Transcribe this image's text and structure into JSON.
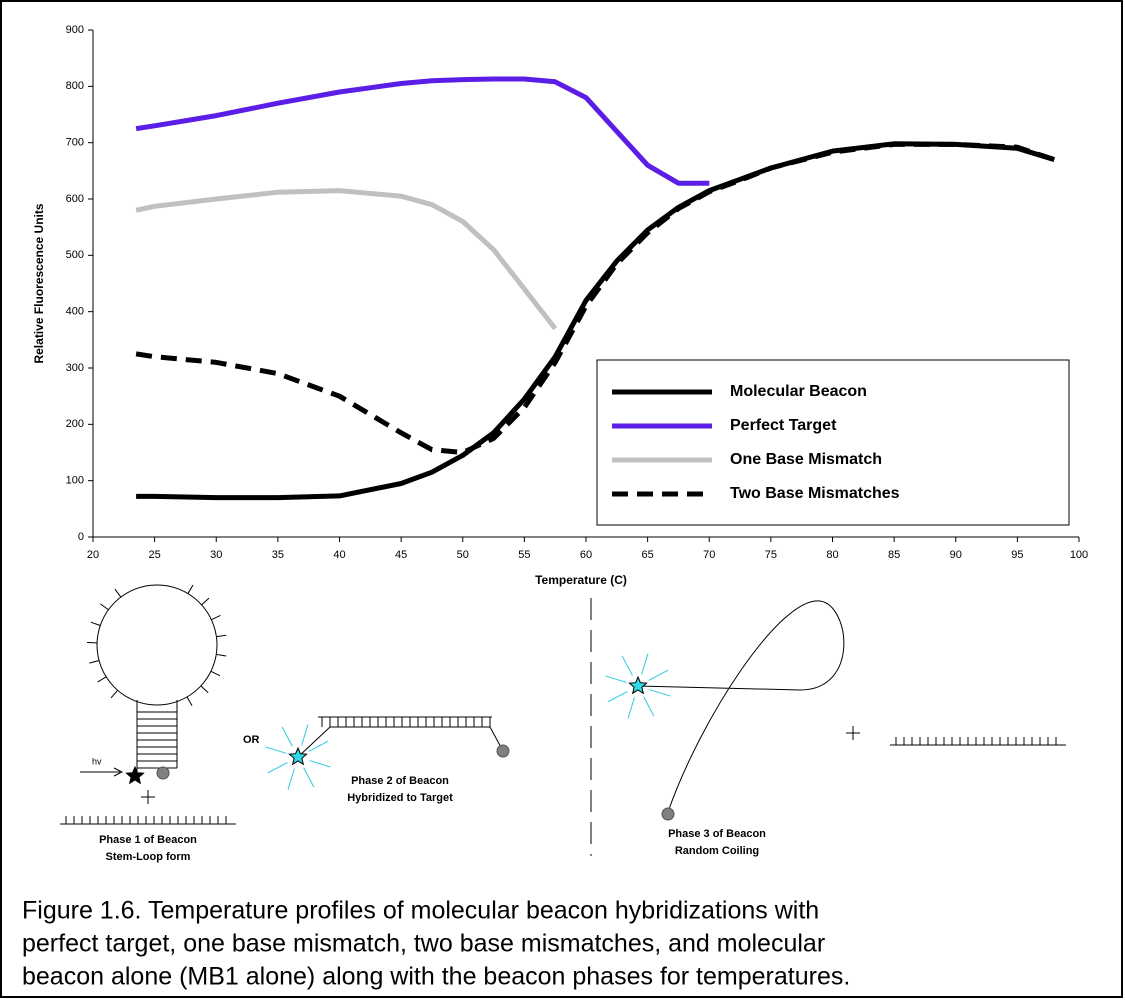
{
  "chart_data": {
    "type": "line",
    "x": [
      23.5,
      25,
      30,
      35,
      40,
      45,
      47.5,
      50,
      52.5,
      55,
      57.5,
      60,
      62.5,
      65,
      67.5,
      70,
      72.5,
      75,
      80,
      85,
      90,
      95,
      98
    ],
    "series": [
      {
        "name": "Molecular Beacon",
        "color": "#000000",
        "line_style": "solid",
        "values": [
          72,
          72,
          70,
          70,
          73,
          95,
          115,
          145,
          185,
          245,
          320,
          420,
          490,
          545,
          585,
          615,
          635,
          655,
          685,
          698,
          697,
          690,
          670
        ]
      },
      {
        "name": "Perfect Target",
        "color": "#5a1ee6",
        "line_style": "solid",
        "values": [
          725,
          730,
          748,
          770,
          790,
          805,
          810,
          812,
          813,
          813,
          808,
          780,
          720,
          660,
          628,
          628,
          null,
          null,
          null,
          null,
          null,
          null,
          null
        ]
      },
      {
        "name": "One Base Mismatch",
        "color": "#c0c0c0",
        "line_style": "solid",
        "values": [
          580,
          587,
          600,
          612,
          615,
          605,
          590,
          560,
          510,
          440,
          370,
          null,
          null,
          null,
          null,
          null,
          null,
          null,
          null,
          null,
          null,
          null,
          null
        ]
      },
      {
        "name": "Two Base Mismatches",
        "color": "#000000",
        "line_style": "dashed",
        "values": [
          325,
          320,
          310,
          290,
          250,
          185,
          155,
          150,
          175,
          230,
          310,
          410,
          485,
          540,
          583,
          613,
          633,
          655,
          683,
          697,
          697,
          692,
          670
        ]
      }
    ],
    "x_label": "Temperature (C)",
    "y_label": "Relative Fluorescence Units",
    "xlim": [
      20,
      100
    ],
    "xticks": [
      20,
      25,
      30,
      35,
      40,
      45,
      50,
      55,
      60,
      65,
      70,
      75,
      80,
      85,
      90,
      95,
      100
    ],
    "ylim": [
      0,
      900
    ],
    "yticks": [
      0,
      100,
      200,
      300,
      400,
      500,
      600,
      700,
      800,
      900
    ],
    "grid": false,
    "legend": "lower right"
  },
  "diagram": {
    "phase1": {
      "energy": "hv",
      "lines": [
        "Phase 1 of Beacon",
        "Stem-Loop form"
      ]
    },
    "or": "OR",
    "phase2": {
      "lines": [
        "Phase 2 of Beacon",
        "Hybridized to Target"
      ]
    },
    "phase3": {
      "lines": [
        "Phase 3 of Beacon",
        "Random Coiling"
      ]
    }
  },
  "caption": {
    "lines": [
      "Figure 1.6.  Temperature profiles of molecular beacon hybridizations with",
      "perfect target, one base mismatch, two base mismatches, and molecular",
      "beacon alone (MB1 alone) along with the beacon phases for temperatures."
    ]
  }
}
